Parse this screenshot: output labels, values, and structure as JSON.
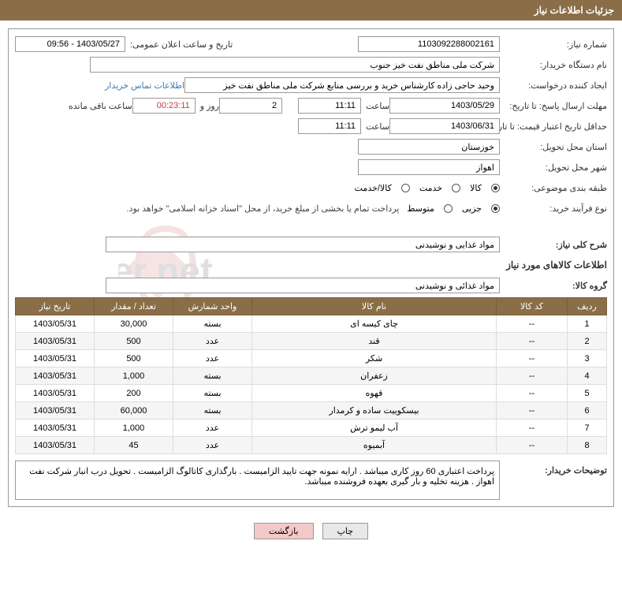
{
  "header": {
    "title": "جزئیات اطلاعات نیاز"
  },
  "fields": {
    "need_number_label": "شماره نیاز:",
    "need_number": "1103092288002161",
    "announce_datetime_label": "تاریخ و ساعت اعلان عمومی:",
    "announce_datetime": "1403/05/27 - 09:56",
    "buyer_org_label": "نام دستگاه خریدار:",
    "buyer_org": "شرکت ملی مناطق نفت خیز جنوب",
    "requester_label": "ایجاد کننده درخواست:",
    "requester": "وحید حاجی زاده  کارشناس خرید و بررسی منابع  شرکت ملی مناطق نفت خیز",
    "contact_link": "اطلاعات تماس خریدار",
    "deadline_label": "مهلت ارسال پاسخ: تا تاریخ:",
    "deadline_date": "1403/05/29",
    "time_label": "ساعت",
    "deadline_time": "11:11",
    "days_remaining": "2",
    "days_label": "روز و",
    "time_remaining": "00:23:11",
    "remaining_label": "ساعت باقی مانده",
    "price_validity_label": "حداقل تاریخ اعتبار قیمت: تا تاریخ:",
    "price_validity_date": "1403/06/31",
    "price_validity_time": "11:11",
    "province_label": "استان محل تحویل:",
    "province": "خوزستان",
    "city_label": "شهر محل تحویل:",
    "city": "اهواز",
    "category_label": "طبقه بندی موضوعی:",
    "cat_goods": "کالا",
    "cat_service": "خدمت",
    "cat_goods_service": "کالا/خدمت",
    "purchase_type_label": "نوع فرآیند خرید:",
    "type_small": "جزیی",
    "type_medium": "متوسط",
    "payment_note": "پرداخت تمام یا بخشی از مبلغ خرید، از محل \"اسناد خزانه اسلامی\" خواهد بود.",
    "summary_label": "شرح کلی نیاز:",
    "summary": "مواد غذایی و نوشیدنی",
    "goods_info_title": "اطلاعات کالاهای مورد نیاز",
    "goods_group_label": "گروه کالا:",
    "goods_group": "مواد غذائی و نوشیدنی",
    "buyer_notes_label": "توضیحات خریدار:",
    "buyer_notes": "پرداخت اعتباری 60 روز کاری میباشد . ارایه نمونه جهت تایید الزامیست . بارگذاری کاتالوگ الزامیست . تحویل درب انبار شرکت نفت اهواز . هزینه تخلیه و بار گیری بعهده فروشنده میباشد."
  },
  "table": {
    "headers": {
      "row": "ردیف",
      "code": "کد کالا",
      "name": "نام کالا",
      "unit": "واحد شمارش",
      "qty": "تعداد / مقدار",
      "date": "تاریخ نیاز"
    },
    "rows": [
      {
        "n": "1",
        "code": "--",
        "name": "چای کیسه ای",
        "unit": "بسته",
        "qty": "30,000",
        "date": "1403/05/31"
      },
      {
        "n": "2",
        "code": "--",
        "name": "قند",
        "unit": "عدد",
        "qty": "500",
        "date": "1403/05/31"
      },
      {
        "n": "3",
        "code": "--",
        "name": "شکر",
        "unit": "عدد",
        "qty": "500",
        "date": "1403/05/31"
      },
      {
        "n": "4",
        "code": "--",
        "name": "زعفران",
        "unit": "بسته",
        "qty": "1,000",
        "date": "1403/05/31"
      },
      {
        "n": "5",
        "code": "--",
        "name": "قهوه",
        "unit": "بسته",
        "qty": "200",
        "date": "1403/05/31"
      },
      {
        "n": "6",
        "code": "--",
        "name": "بیسکوییت ساده و کرمدار",
        "unit": "بسته",
        "qty": "60,000",
        "date": "1403/05/31"
      },
      {
        "n": "7",
        "code": "--",
        "name": "آب لیمو ترش",
        "unit": "عدد",
        "qty": "1,000",
        "date": "1403/05/31"
      },
      {
        "n": "8",
        "code": "--",
        "name": "آبمیوه",
        "unit": "عدد",
        "qty": "45",
        "date": "1403/05/31"
      }
    ]
  },
  "buttons": {
    "print": "چاپ",
    "back": "بازگشت"
  }
}
